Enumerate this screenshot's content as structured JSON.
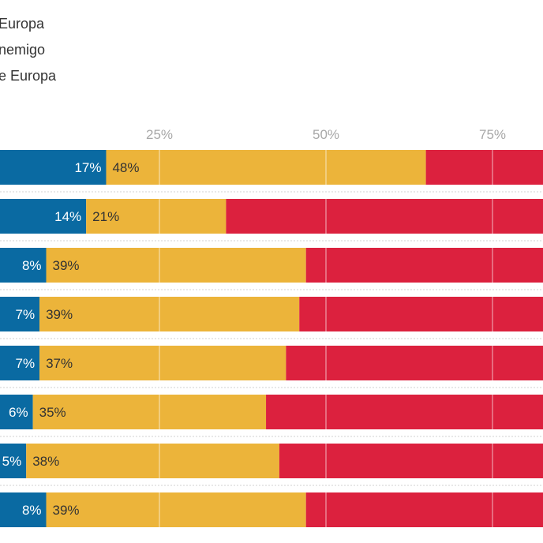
{
  "legend": [
    "Europa",
    "nemigo",
    "e Europa"
  ],
  "colors": {
    "blue": "#0a6aa2",
    "yellow": "#ecb43a",
    "red": "#dc213e"
  },
  "chart_data": {
    "type": "bar",
    "orientation": "horizontal",
    "stacked": true,
    "xlim": [
      0,
      100
    ],
    "xticks": [
      "%",
      "25%",
      "50%",
      "75%"
    ],
    "series": [
      {
        "values": [
          17,
          14,
          8,
          7,
          7,
          6,
          5,
          8
        ],
        "labels": [
          "17%",
          "14%",
          "8%",
          "7%",
          "7%",
          "6%",
          "5%",
          "8%"
        ],
        "color": "#0a6aa2"
      },
      {
        "values": [
          48,
          21,
          39,
          39,
          37,
          35,
          38,
          39
        ],
        "labels": [
          "48%",
          "21%",
          "39%",
          "39%",
          "37%",
          "35%",
          "38%",
          "39%"
        ],
        "color": "#ecb43a"
      },
      {
        "values": [
          35,
          65,
          53,
          54,
          56,
          59,
          57,
          53
        ],
        "color": "#dc213e"
      }
    ],
    "grid": true
  }
}
